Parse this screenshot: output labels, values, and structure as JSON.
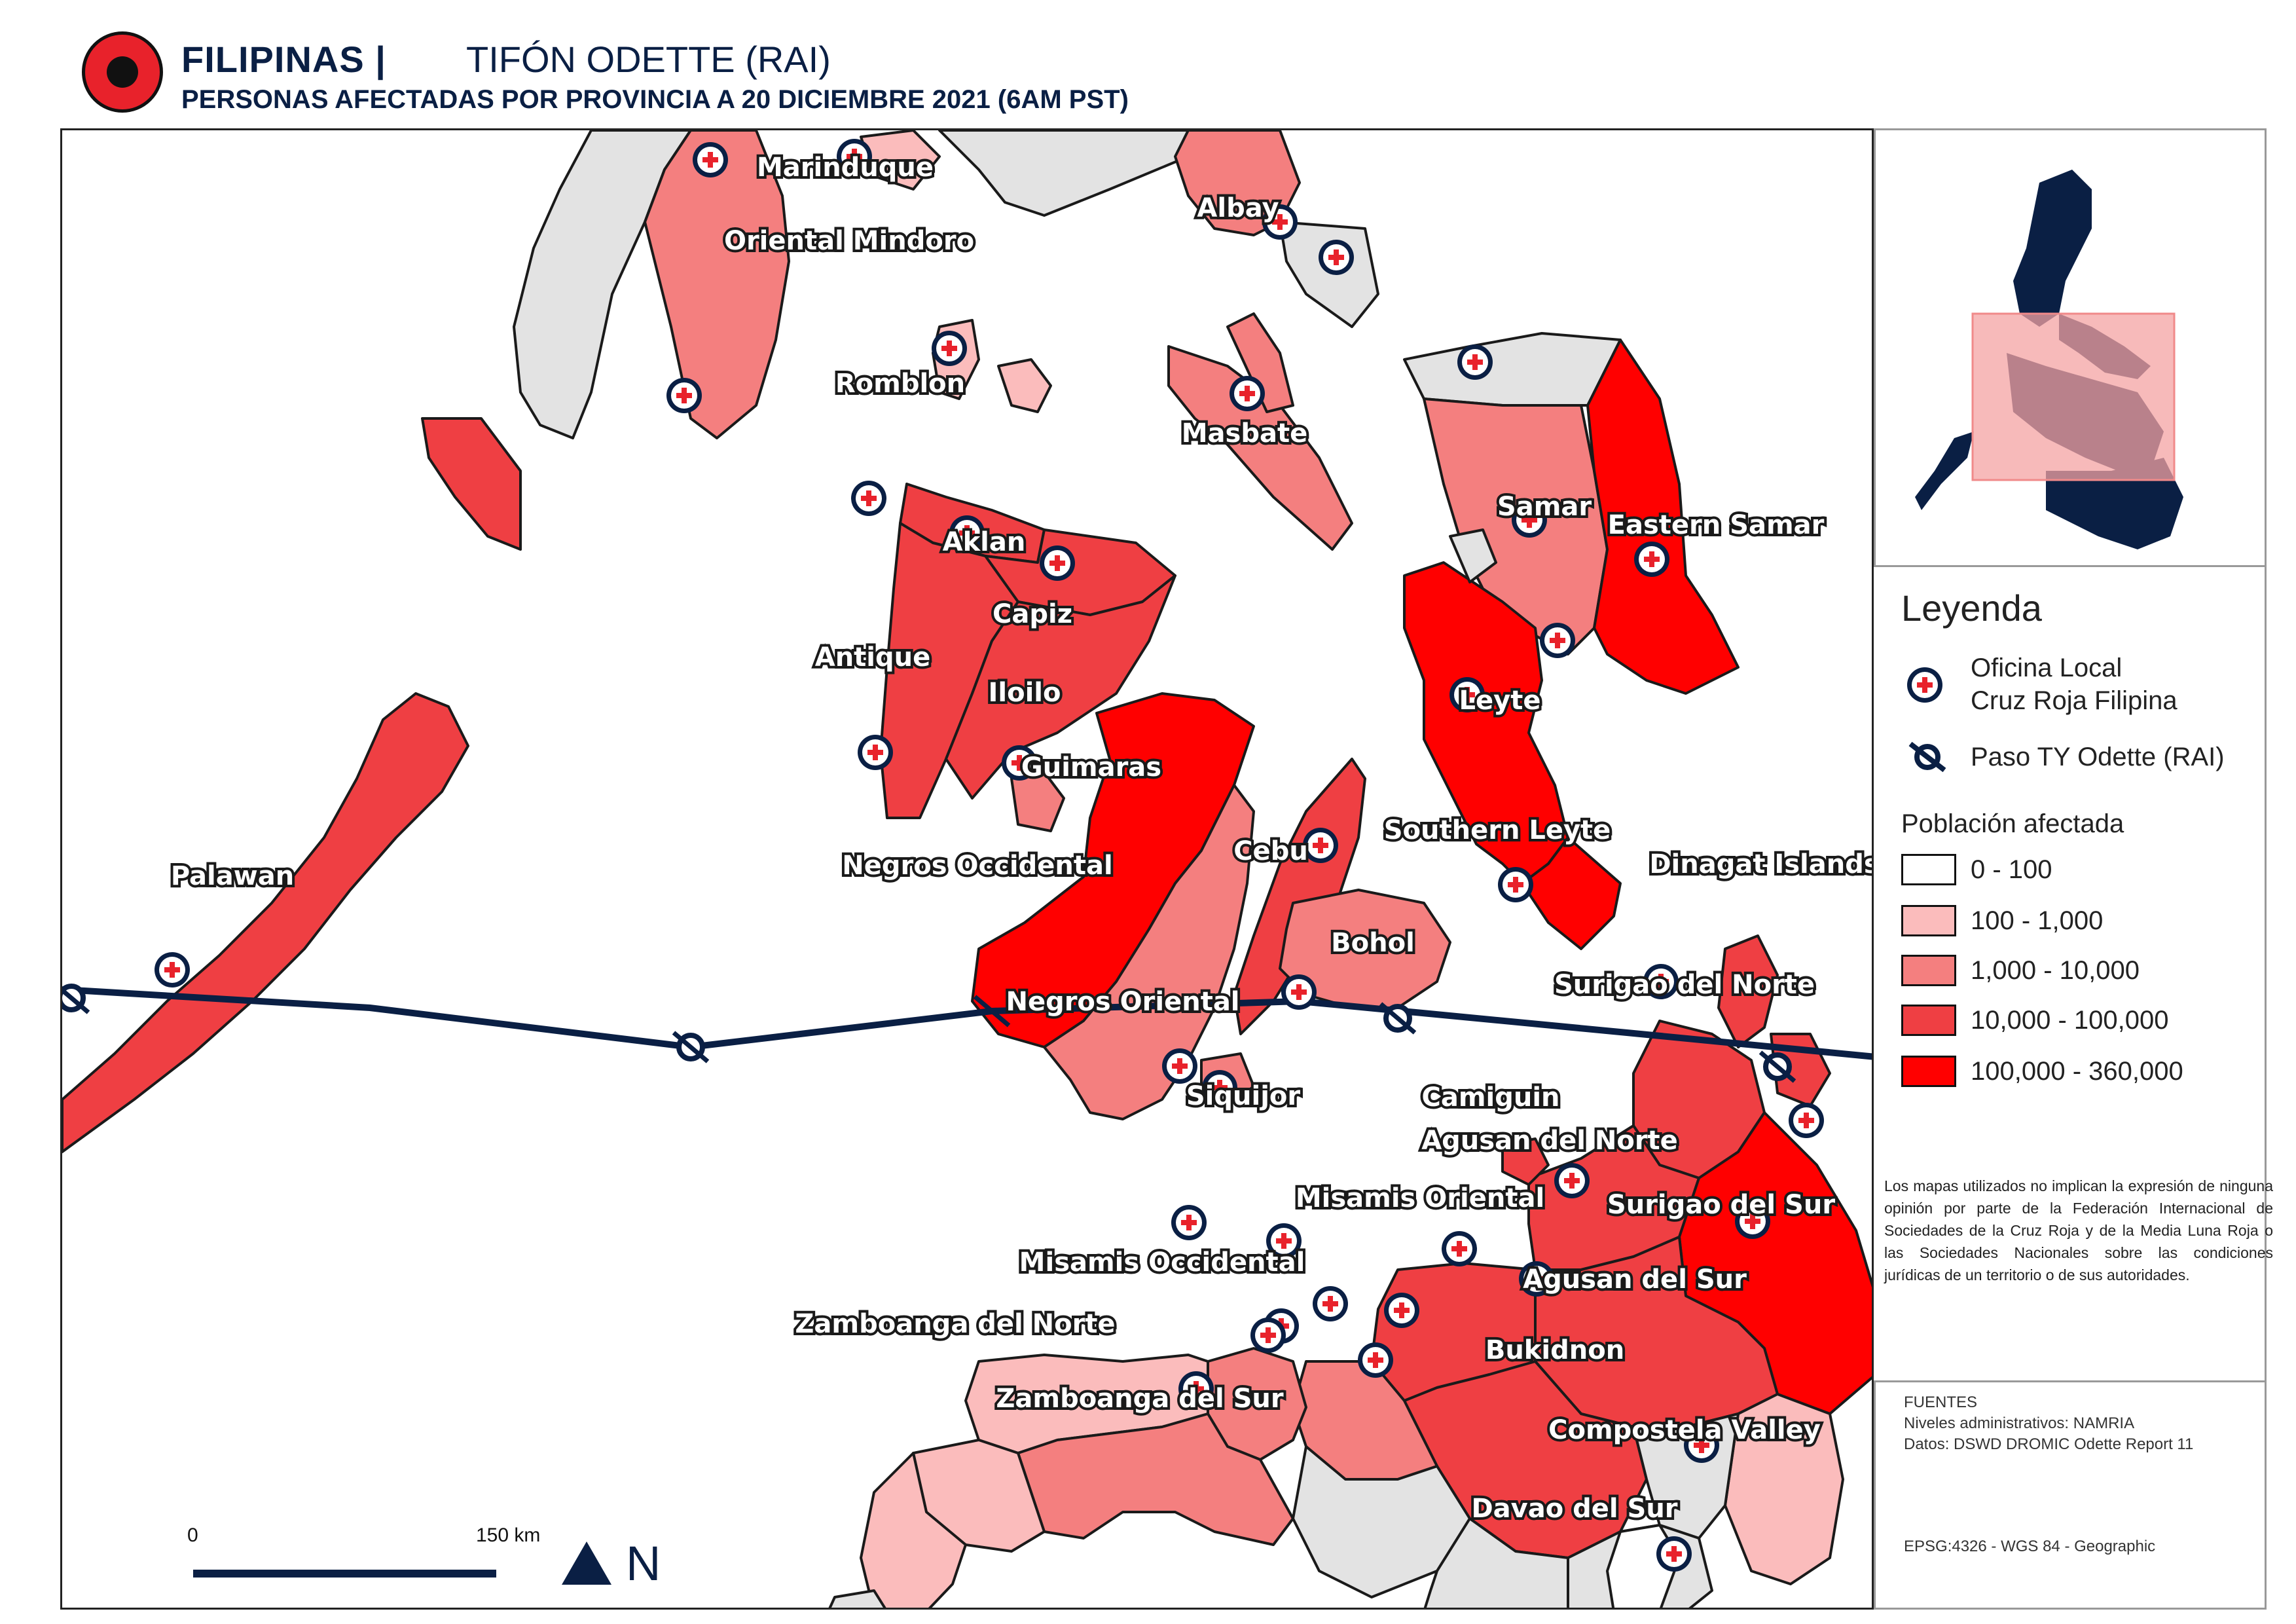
{
  "header": {
    "country": "FILIPINAS |",
    "event": "TIFÓN ODETTE (RAI)",
    "subtitle": "PERSONAS AFECTADAS POR PROVINCIA A 20 DICIEMBRE 2021 (6AM PST)"
  },
  "provinces": [
    {
      "name": "Marinduque",
      "class": "100 - 1,000"
    },
    {
      "name": "Oriental Mindoro",
      "class": "1,000 - 10,000"
    },
    {
      "name": "Albay",
      "class": "1,000 - 10,000"
    },
    {
      "name": "Romblon",
      "class": "100 - 1,000"
    },
    {
      "name": "Masbate",
      "class": "1,000 - 10,000"
    },
    {
      "name": "Samar",
      "class": "1,000 - 10,000"
    },
    {
      "name": "Eastern Samar",
      "class": "100,000 - 360,000"
    },
    {
      "name": "Aklan",
      "class": "10,000 - 100,000"
    },
    {
      "name": "Capiz",
      "class": "10,000 - 100,000"
    },
    {
      "name": "Antique",
      "class": "10,000 - 100,000"
    },
    {
      "name": "Iloilo",
      "class": "10,000 - 100,000"
    },
    {
      "name": "Guimaras",
      "class": "1,000 - 10,000"
    },
    {
      "name": "Leyte",
      "class": "100,000 - 360,000"
    },
    {
      "name": "Palawan",
      "class": "10,000 - 100,000"
    },
    {
      "name": "Negros Occidental",
      "class": "100,000 - 360,000"
    },
    {
      "name": "Cebu",
      "class": "10,000 - 100,000"
    },
    {
      "name": "Southern Leyte",
      "class": "100,000 - 360,000"
    },
    {
      "name": "Dinagat Islands",
      "class": "10,000 - 100,000"
    },
    {
      "name": "Bohol",
      "class": "1,000 - 10,000"
    },
    {
      "name": "Surigao del Norte",
      "class": "10,000 - 100,000"
    },
    {
      "name": "Negros Oriental",
      "class": "1,000 - 10,000"
    },
    {
      "name": "Siquijor",
      "class": "1,000 - 10,000"
    },
    {
      "name": "Camiguin",
      "class": "10,000 - 100,000"
    },
    {
      "name": "Agusan del Norte",
      "class": "10,000 - 100,000"
    },
    {
      "name": "Misamis Oriental",
      "class": "10,000 - 100,000"
    },
    {
      "name": "Surigao del Sur",
      "class": "100,000 - 360,000"
    },
    {
      "name": "Misamis Occidental",
      "class": "1,000 - 10,000"
    },
    {
      "name": "Agusan del Sur",
      "class": "10,000 - 100,000"
    },
    {
      "name": "Zamboanga del Norte",
      "class": "100 - 1,000"
    },
    {
      "name": "Bukidnon",
      "class": "10,000 - 100,000"
    },
    {
      "name": "Zamboanga del Sur",
      "class": "1,000 - 10,000"
    },
    {
      "name": "Compostela Valley",
      "class": "100 - 1,000"
    },
    {
      "name": "Davao del Sur",
      "class": ""
    }
  ],
  "legend": {
    "title": "Leyenda",
    "office_line1": "Oficina Local",
    "office_line2": "Cruz Roja Filipina",
    "track": "Paso TY Odette (RAI)",
    "pop_title": "Población afectada",
    "classes": [
      {
        "label": "0 - 100",
        "color": "#ffffff"
      },
      {
        "label": "100 - 1,000",
        "color": "#fbbcbc"
      },
      {
        "label": "1,000 - 10,000",
        "color": "#f47f7f"
      },
      {
        "label": "10,000 - 100,000",
        "color": "#ef3f43"
      },
      {
        "label": "100,000 - 360,000",
        "color": "#ff0000"
      }
    ],
    "no_data_color": "#e3e3e3"
  },
  "disclaimer": "Los mapas utilizados no implican la expresión de ninguna opinión por parte de la Federación Internacional de Sociedades de la Cruz Roja y de la Media Luna Roja o las Sociedades Nacionales sobre las condiciones jurídicas de un territorio o de sus autoridades.",
  "sources": {
    "title": "FUENTES",
    "admin": "Niveles administrativos: NAMRIA",
    "data": "Datos: DSWD DROMIC Odette Report 11",
    "crs": "EPSG:4326 - WGS 84 - Geographic"
  },
  "scale": {
    "zero": "0",
    "dist": "150 km"
  },
  "north": "N",
  "icons": {
    "logo": "ifrc-emblem-icon",
    "office": "red-cross-office-icon",
    "track": "typhoon-track-icon",
    "north": "north-arrow-icon"
  }
}
